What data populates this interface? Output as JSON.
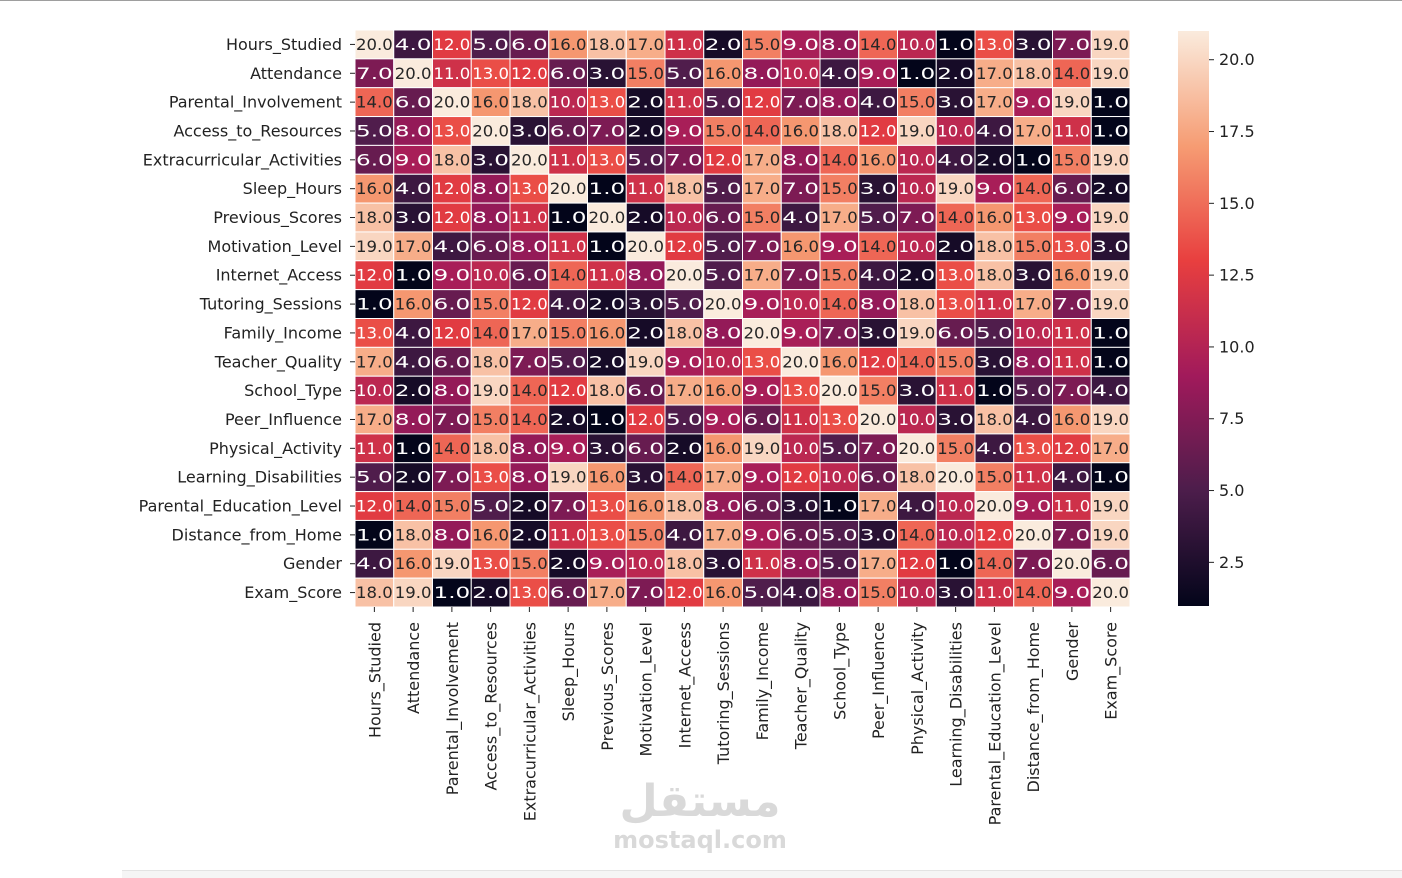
{
  "watermark": {
    "logo": "مستقل",
    "url": "mostaql.com"
  },
  "chart_data": {
    "type": "heatmap",
    "title": "",
    "xlabel": "",
    "ylabel": "",
    "annotate": true,
    "cell_border_color": "#ffffff",
    "colormap": [
      "#03051a",
      "#4c1d4b",
      "#a11a5b",
      "#e83f3f",
      "#f69c73",
      "#faebdd"
    ],
    "value_range": [
      1,
      20
    ],
    "colorbar_ticks": [
      "2.5",
      "5.0",
      "7.5",
      "10.0",
      "12.5",
      "15.0",
      "17.5",
      "20.0"
    ],
    "labels": [
      "Hours_Studied",
      "Attendance",
      "Parental_Involvement",
      "Access_to_Resources",
      "Extracurricular_Activities",
      "Sleep_Hours",
      "Previous_Scores",
      "Motivation_Level",
      "Internet_Access",
      "Tutoring_Sessions",
      "Family_Income",
      "Teacher_Quality",
      "School_Type",
      "Peer_Influence",
      "Physical_Activity",
      "Learning_Disabilities",
      "Parental_Education_Level",
      "Distance_from_Home",
      "Gender",
      "Exam_Score"
    ],
    "matrix": [
      [
        "20.0",
        "4.0",
        "12.0",
        "5.0",
        "6.0",
        "16.0",
        "18.0",
        "17.0",
        "11.0",
        "2.0",
        "15.0",
        "9.0",
        "8.0",
        "14.0",
        "10.0",
        "1.0",
        "13.0",
        "3.0",
        "7.0",
        "19.0"
      ],
      [
        "7.0",
        "20.0",
        "11.0",
        "13.0",
        "12.0",
        "6.0",
        "3.0",
        "15.0",
        "5.0",
        "16.0",
        "8.0",
        "10.0",
        "4.0",
        "9.0",
        "1.0",
        "2.0",
        "17.0",
        "18.0",
        "14.0",
        "19.0"
      ],
      [
        "14.0",
        "6.0",
        "20.0",
        "16.0",
        "18.0",
        "10.0",
        "13.0",
        "2.0",
        "11.0",
        "5.0",
        "12.0",
        "7.0",
        "8.0",
        "4.0",
        "15.0",
        "3.0",
        "17.0",
        "9.0",
        "19.0",
        "1.0"
      ],
      [
        "5.0",
        "8.0",
        "13.0",
        "20.0",
        "3.0",
        "6.0",
        "7.0",
        "2.0",
        "9.0",
        "15.0",
        "14.0",
        "16.0",
        "18.0",
        "12.0",
        "19.0",
        "10.0",
        "4.0",
        "17.0",
        "11.0",
        "1.0"
      ],
      [
        "6.0",
        "9.0",
        "18.0",
        "3.0",
        "20.0",
        "11.0",
        "13.0",
        "5.0",
        "7.0",
        "12.0",
        "17.0",
        "8.0",
        "14.0",
        "16.0",
        "10.0",
        "4.0",
        "2.0",
        "1.0",
        "15.0",
        "19.0"
      ],
      [
        "16.0",
        "4.0",
        "12.0",
        "8.0",
        "13.0",
        "20.0",
        "1.0",
        "11.0",
        "18.0",
        "5.0",
        "17.0",
        "7.0",
        "15.0",
        "3.0",
        "10.0",
        "19.0",
        "9.0",
        "14.0",
        "6.0",
        "2.0"
      ],
      [
        "18.0",
        "3.0",
        "12.0",
        "8.0",
        "11.0",
        "1.0",
        "20.0",
        "2.0",
        "10.0",
        "6.0",
        "15.0",
        "4.0",
        "17.0",
        "5.0",
        "7.0",
        "14.0",
        "16.0",
        "13.0",
        "9.0",
        "19.0"
      ],
      [
        "19.0",
        "17.0",
        "4.0",
        "6.0",
        "8.0",
        "11.0",
        "1.0",
        "20.0",
        "12.0",
        "5.0",
        "7.0",
        "16.0",
        "9.0",
        "14.0",
        "10.0",
        "2.0",
        "18.0",
        "15.0",
        "13.0",
        "3.0"
      ],
      [
        "12.0",
        "1.0",
        "9.0",
        "10.0",
        "6.0",
        "14.0",
        "11.0",
        "8.0",
        "20.0",
        "5.0",
        "17.0",
        "7.0",
        "15.0",
        "4.0",
        "2.0",
        "13.0",
        "18.0",
        "3.0",
        "16.0",
        "19.0"
      ],
      [
        "1.0",
        "16.0",
        "6.0",
        "15.0",
        "12.0",
        "4.0",
        "2.0",
        "3.0",
        "5.0",
        "20.0",
        "9.0",
        "10.0",
        "14.0",
        "8.0",
        "18.0",
        "13.0",
        "11.0",
        "17.0",
        "7.0",
        "19.0"
      ],
      [
        "13.0",
        "4.0",
        "12.0",
        "14.0",
        "17.0",
        "15.0",
        "16.0",
        "2.0",
        "18.0",
        "8.0",
        "20.0",
        "9.0",
        "7.0",
        "3.0",
        "19.0",
        "6.0",
        "5.0",
        "10.0",
        "11.0",
        "1.0"
      ],
      [
        "17.0",
        "4.0",
        "6.0",
        "18.0",
        "7.0",
        "5.0",
        "2.0",
        "19.0",
        "9.0",
        "10.0",
        "13.0",
        "20.0",
        "16.0",
        "12.0",
        "14.0",
        "15.0",
        "3.0",
        "8.0",
        "11.0",
        "1.0"
      ],
      [
        "10.0",
        "2.0",
        "8.0",
        "19.0",
        "14.0",
        "12.0",
        "18.0",
        "6.0",
        "17.0",
        "16.0",
        "9.0",
        "13.0",
        "20.0",
        "15.0",
        "3.0",
        "11.0",
        "1.0",
        "5.0",
        "7.0",
        "4.0"
      ],
      [
        "17.0",
        "8.0",
        "7.0",
        "15.0",
        "14.0",
        "2.0",
        "1.0",
        "12.0",
        "5.0",
        "9.0",
        "6.0",
        "11.0",
        "13.0",
        "20.0",
        "10.0",
        "3.0",
        "18.0",
        "4.0",
        "16.0",
        "19.0"
      ],
      [
        "11.0",
        "1.0",
        "14.0",
        "18.0",
        "8.0",
        "9.0",
        "3.0",
        "6.0",
        "2.0",
        "16.0",
        "19.0",
        "10.0",
        "5.0",
        "7.0",
        "20.0",
        "15.0",
        "4.0",
        "13.0",
        "12.0",
        "17.0"
      ],
      [
        "5.0",
        "2.0",
        "7.0",
        "13.0",
        "8.0",
        "19.0",
        "16.0",
        "3.0",
        "14.0",
        "17.0",
        "9.0",
        "12.0",
        "10.0",
        "6.0",
        "18.0",
        "20.0",
        "15.0",
        "11.0",
        "4.0",
        "1.0"
      ],
      [
        "12.0",
        "14.0",
        "15.0",
        "5.0",
        "2.0",
        "7.0",
        "13.0",
        "16.0",
        "18.0",
        "8.0",
        "6.0",
        "3.0",
        "1.0",
        "17.0",
        "4.0",
        "10.0",
        "20.0",
        "9.0",
        "11.0",
        "19.0"
      ],
      [
        "1.0",
        "18.0",
        "8.0",
        "16.0",
        "2.0",
        "11.0",
        "13.0",
        "15.0",
        "4.0",
        "17.0",
        "9.0",
        "6.0",
        "5.0",
        "3.0",
        "14.0",
        "10.0",
        "12.0",
        "20.0",
        "7.0",
        "19.0"
      ],
      [
        "4.0",
        "16.0",
        "19.0",
        "13.0",
        "15.0",
        "2.0",
        "9.0",
        "10.0",
        "18.0",
        "3.0",
        "11.0",
        "8.0",
        "5.0",
        "17.0",
        "12.0",
        "1.0",
        "14.0",
        "7.0",
        "20.0",
        "6.0"
      ],
      [
        "18.0",
        "19.0",
        "1.0",
        "2.0",
        "13.0",
        "6.0",
        "17.0",
        "7.0",
        "12.0",
        "16.0",
        "5.0",
        "4.0",
        "8.0",
        "15.0",
        "10.0",
        "3.0",
        "11.0",
        "14.0",
        "9.0",
        "20.0"
      ]
    ]
  }
}
